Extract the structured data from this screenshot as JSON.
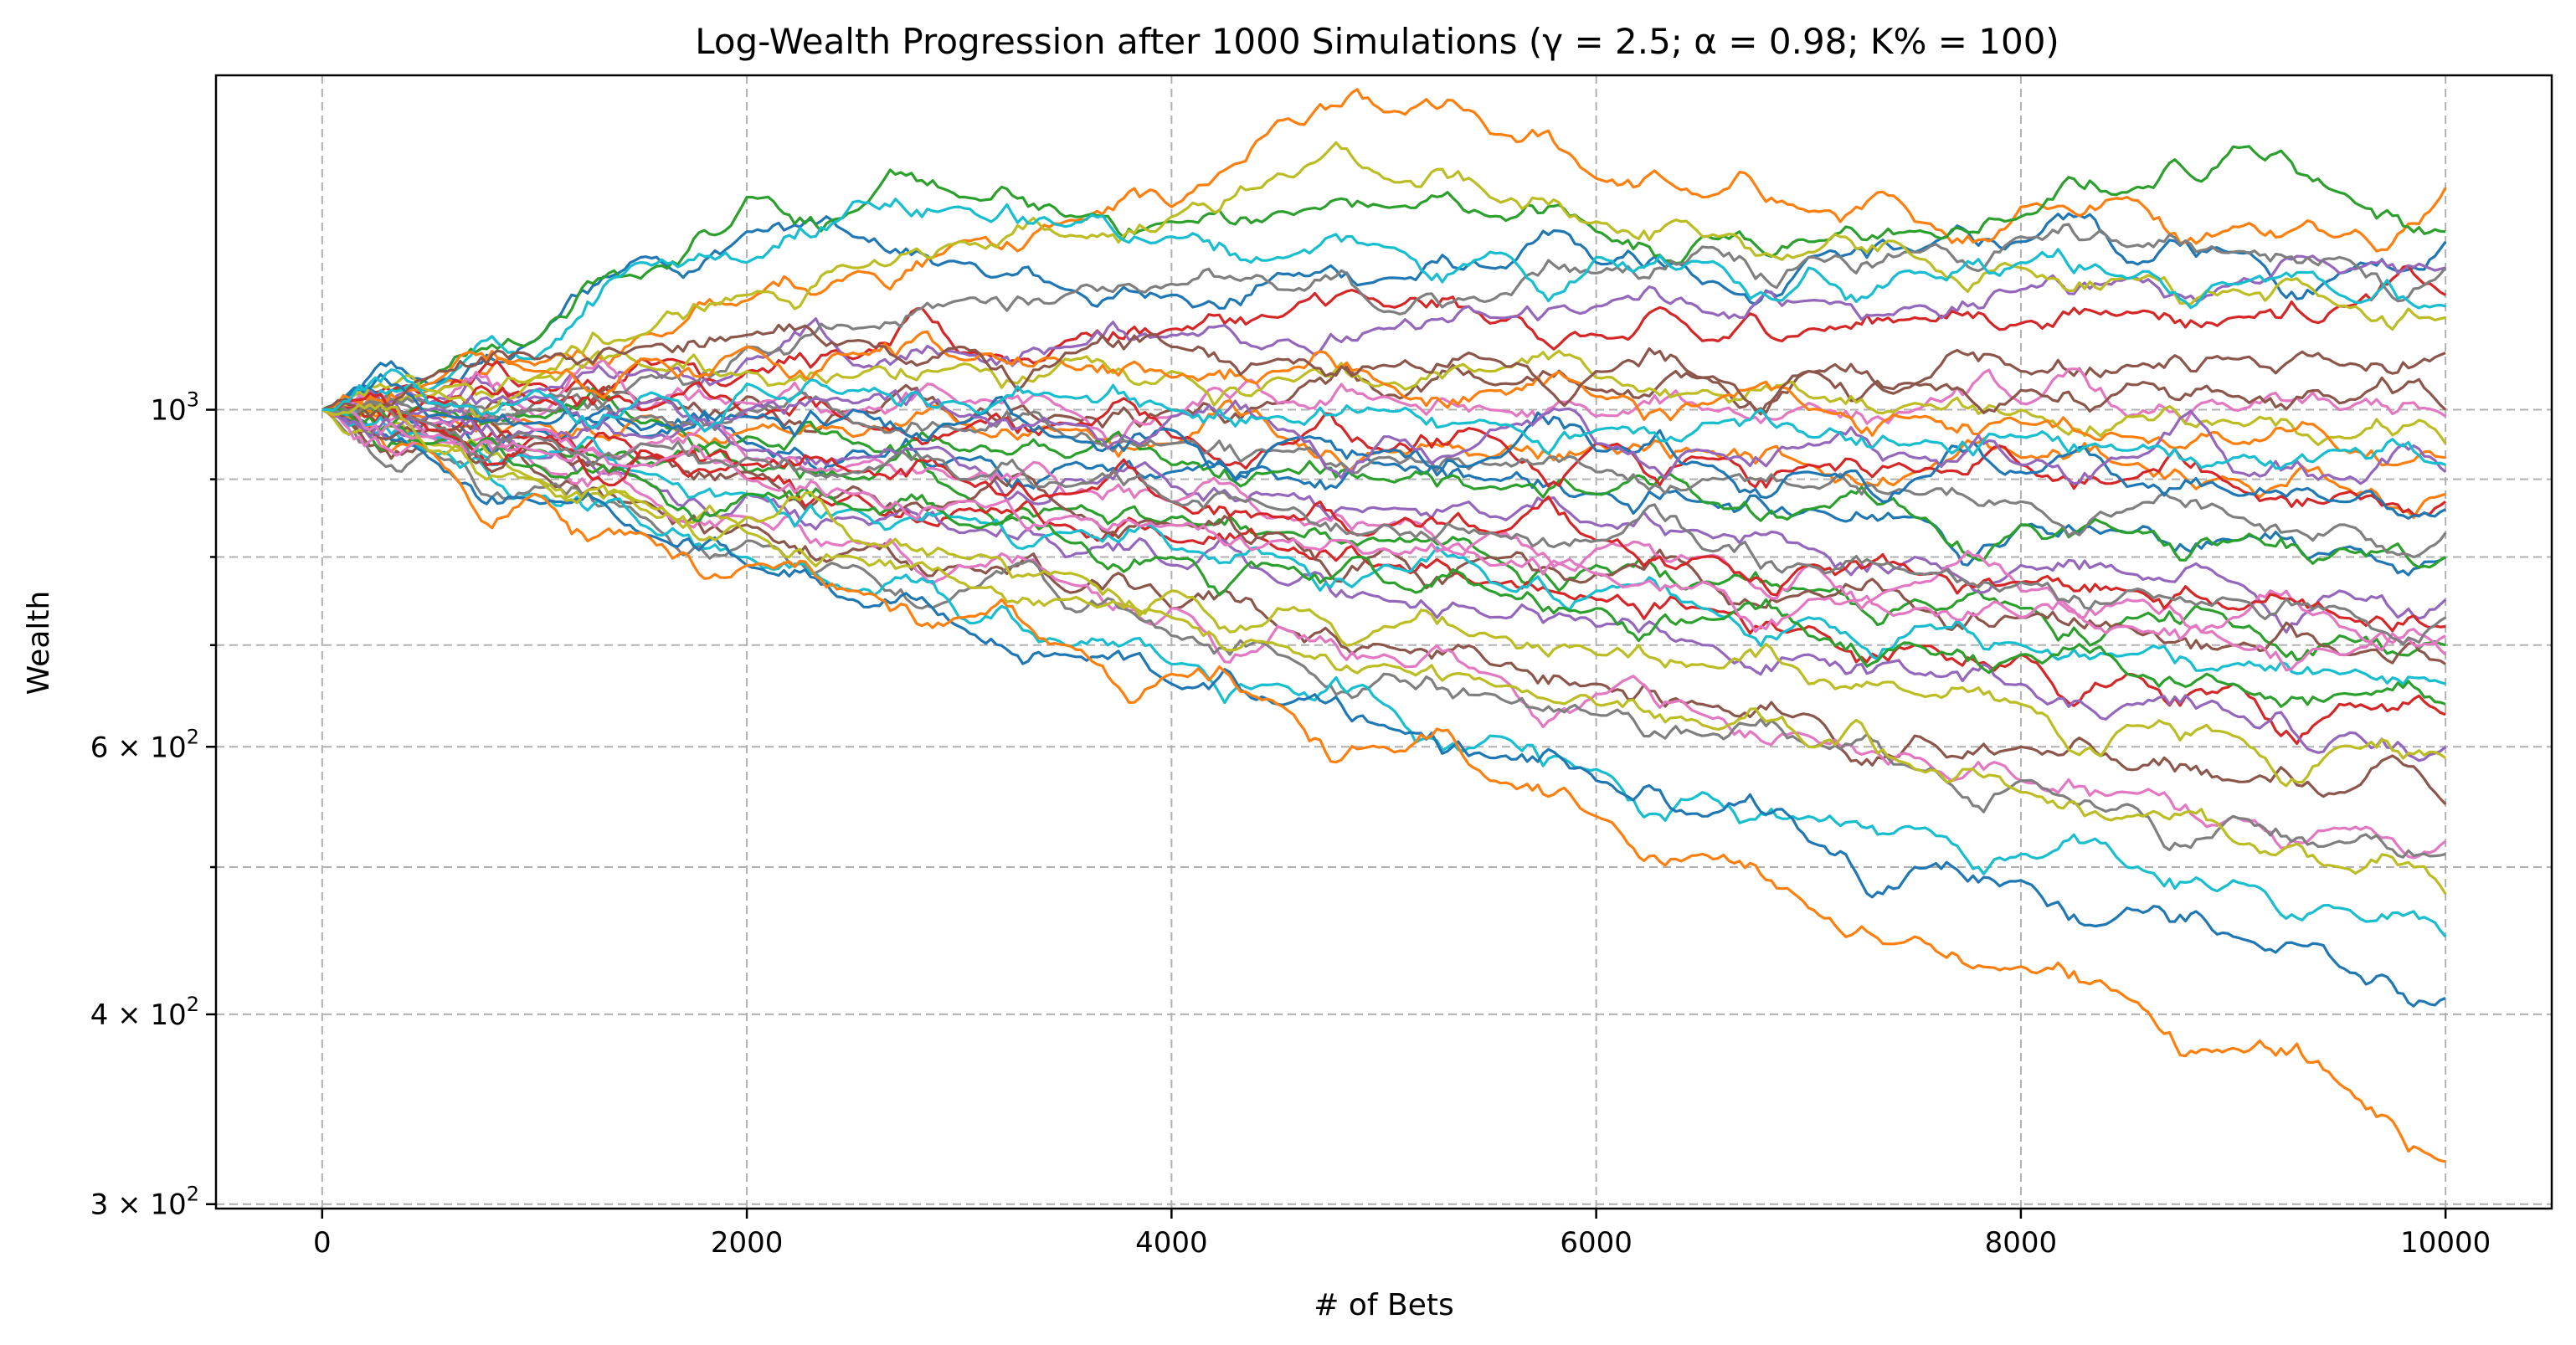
{
  "chart_data": {
    "type": "line",
    "title": "Log-Wealth Progression after 1000 Simulations (γ = 2.5; α = 0.98; K% = 100)",
    "xlabel": "# of Bets",
    "ylabel": "Wealth",
    "xlim": [
      -500,
      10500
    ],
    "ylim": [
      298,
      1660
    ],
    "y_scale": "log",
    "grid": true,
    "legend": "none",
    "x_ticks": [
      {
        "value": 0,
        "label": "0"
      },
      {
        "value": 2000,
        "label": "2000"
      },
      {
        "value": 4000,
        "label": "4000"
      },
      {
        "value": 6000,
        "label": "6000"
      },
      {
        "value": 8000,
        "label": "8000"
      },
      {
        "value": 10000,
        "label": "10000"
      }
    ],
    "y_ticks": [
      {
        "value": 300,
        "base": "3",
        "exp": "2"
      },
      {
        "value": 400,
        "base": "4",
        "exp": "2"
      },
      {
        "value": 600,
        "base": "6",
        "exp": "2"
      },
      {
        "value": 1000,
        "base": "10",
        "exp": "3"
      }
    ],
    "y_minor_grid": [
      500,
      700,
      800,
      900
    ],
    "x": [
      0,
      500,
      1000,
      1500,
      2000,
      2500,
      3000,
      3500,
      4000,
      4500,
      5000,
      5500,
      6000,
      6500,
      7000,
      7500,
      8000,
      8500,
      9000,
      9500,
      10000
    ],
    "colors": [
      "#1f77b4",
      "#ff7f0e",
      "#2ca02c",
      "#d62728",
      "#9467bd",
      "#8c564b",
      "#e377c2",
      "#7f7f7f",
      "#bcbd22",
      "#17becf"
    ],
    "series": [
      {
        "values": [
          1000,
          1040,
          1110,
          1260,
          1310,
          1300,
          1250,
          1200,
          1190,
          1230,
          1220,
          1240,
          1250,
          1210,
          1260,
          1270,
          1290,
          1250,
          1270,
          1230,
          1290
        ]
      },
      {
        "values": [
          1000,
          1030,
          1070,
          1120,
          1180,
          1230,
          1290,
          1330,
          1360,
          1550,
          1570,
          1520,
          1420,
          1380,
          1350,
          1330,
          1360,
          1380,
          1320,
          1300,
          1400
        ]
      },
      {
        "values": [
          1000,
          1050,
          1110,
          1220,
          1380,
          1350,
          1380,
          1340,
          1330,
          1350,
          1360,
          1340,
          1310,
          1300,
          1290,
          1310,
          1340,
          1390,
          1490,
          1390,
          1310
        ]
      },
      {
        "values": [
          1000,
          1020,
          1040,
          1080,
          1060,
          1080,
          1090,
          1110,
          1130,
          1150,
          1170,
          1140,
          1120,
          1110,
          1130,
          1150,
          1140,
          1160,
          1150,
          1170,
          1190
        ]
      },
      {
        "values": [
          1000,
          1010,
          1030,
          1060,
          1080,
          1070,
          1090,
          1100,
          1120,
          1110,
          1130,
          1150,
          1170,
          1160,
          1180,
          1170,
          1200,
          1220,
          1210,
          1230,
          1240
        ]
      },
      {
        "values": [
          1000,
          990,
          1000,
          1010,
          1020,
          1000,
          980,
          990,
          1000,
          1010,
          1020,
          1040,
          1030,
          1050,
          1060,
          1040,
          1060,
          1070,
          1080,
          1070,
          1090
        ]
      },
      {
        "values": [
          1000,
          1010,
          990,
          1000,
          1010,
          1000,
          1010,
          1000,
          990,
          1010,
          1020,
          1000,
          990,
          1000,
          1010,
          1000,
          1010,
          990,
          1000,
          1000,
          990
        ]
      },
      {
        "values": [
          1000,
          1000,
          1010,
          1050,
          1100,
          1130,
          1180,
          1190,
          1210,
          1200,
          1160,
          1180,
          1230,
          1280,
          1260,
          1270,
          1300,
          1280,
          1270,
          1260,
          1240
        ]
      },
      {
        "values": [
          1000,
          1020,
          1050,
          1120,
          1190,
          1240,
          1290,
          1300,
          1340,
          1430,
          1420,
          1380,
          1330,
          1300,
          1270,
          1260,
          1240,
          1220,
          1200,
          1170,
          1150
        ]
      },
      {
        "values": [
          1000,
          1030,
          1080,
          1250,
          1250,
          1370,
          1360,
          1320,
          1300,
          1260,
          1280,
          1270,
          1260,
          1250,
          1240,
          1230,
          1250,
          1220,
          1210,
          1190,
          1170
        ]
      },
      {
        "values": [
          1000,
          980,
          970,
          960,
          950,
          940,
          930,
          920,
          910,
          900,
          920,
          900,
          880,
          870,
          860,
          850,
          840,
          830,
          820,
          810,
          800
        ]
      },
      {
        "values": [
          1000,
          990,
          980,
          990,
          970,
          960,
          980,
          970,
          950,
          960,
          940,
          930,
          950,
          940,
          920,
          910,
          930,
          920,
          900,
          890,
          880
        ]
      },
      {
        "values": [
          1000,
          970,
          940,
          920,
          910,
          900,
          880,
          860,
          850,
          830,
          820,
          800,
          790,
          770,
          760,
          750,
          740,
          730,
          720,
          710,
          700
        ]
      },
      {
        "values": [
          1000,
          980,
          960,
          930,
          900,
          880,
          860,
          840,
          820,
          810,
          790,
          770,
          750,
          740,
          720,
          700,
          690,
          670,
          660,
          640,
          630
        ]
      },
      {
        "values": [
          1000,
          960,
          930,
          900,
          880,
          850,
          830,
          800,
          790,
          770,
          750,
          730,
          720,
          700,
          690,
          670,
          660,
          640,
          630,
          610,
          600
        ]
      },
      {
        "values": [
          1000,
          950,
          910,
          870,
          840,
          810,
          790,
          760,
          740,
          720,
          700,
          680,
          660,
          640,
          630,
          610,
          600,
          580,
          570,
          560,
          550
        ]
      },
      {
        "values": [
          1000,
          960,
          920,
          880,
          850,
          820,
          790,
          770,
          740,
          720,
          690,
          670,
          650,
          630,
          610,
          590,
          570,
          560,
          540,
          530,
          520
        ]
      },
      {
        "values": [
          1000,
          940,
          890,
          850,
          820,
          790,
          760,
          740,
          710,
          690,
          670,
          650,
          630,
          610,
          600,
          580,
          570,
          550,
          540,
          520,
          510
        ]
      },
      {
        "values": [
          1000,
          950,
          900,
          860,
          830,
          800,
          770,
          750,
          730,
          700,
          680,
          660,
          640,
          620,
          600,
          580,
          560,
          540,
          520,
          500,
          480
        ]
      },
      {
        "values": [
          1000,
          940,
          880,
          840,
          800,
          760,
          730,
          700,
          680,
          660,
          640,
          610,
          580,
          560,
          540,
          530,
          510,
          500,
          490,
          470,
          450
        ]
      },
      {
        "values": [
          1000,
          930,
          870,
          830,
          790,
          750,
          720,
          690,
          660,
          640,
          620,
          590,
          570,
          540,
          520,
          500,
          490,
          470,
          450,
          430,
          410
        ]
      },
      {
        "values": [
          1000,
          940,
          880,
          830,
          790,
          760,
          730,
          700,
          670,
          640,
          600,
          570,
          540,
          510,
          470,
          450,
          430,
          410,
          380,
          360,
          320
        ]
      },
      {
        "values": [
          1000,
          1000,
          990,
          980,
          960,
          950,
          940,
          930,
          920,
          910,
          900,
          890,
          880,
          870,
          860,
          850,
          840,
          830,
          820,
          810,
          800
        ]
      },
      {
        "values": [
          1000,
          1020,
          1010,
          1000,
          990,
          980,
          970,
          980,
          960,
          950,
          940,
          960,
          950,
          930,
          920,
          910,
          920,
          900,
          890,
          880,
          870
        ]
      },
      {
        "values": [
          1000,
          990,
          970,
          960,
          940,
          930,
          920,
          900,
          890,
          880,
          860,
          850,
          840,
          830,
          810,
          800,
          790,
          780,
          770,
          760,
          750
        ]
      },
      {
        "values": [
          1000,
          970,
          950,
          930,
          910,
          890,
          870,
          860,
          840,
          830,
          810,
          800,
          780,
          770,
          760,
          740,
          730,
          720,
          700,
          690,
          680
        ]
      },
      {
        "values": [
          1000,
          980,
          970,
          950,
          930,
          920,
          900,
          880,
          870,
          850,
          840,
          830,
          810,
          800,
          790,
          770,
          760,
          750,
          730,
          720,
          710
        ]
      },
      {
        "values": [
          1000,
          1010,
          1000,
          990,
          1000,
          980,
          970,
          960,
          950,
          940,
          930,
          920,
          910,
          900,
          890,
          880,
          870,
          860,
          850,
          840,
          830
        ]
      },
      {
        "values": [
          1000,
          1030,
          1050,
          1070,
          1060,
          1050,
          1070,
          1080,
          1060,
          1050,
          1040,
          1060,
          1050,
          1030,
          1020,
          1010,
          1000,
          990,
          980,
          960,
          950
        ]
      },
      {
        "values": [
          1000,
          960,
          930,
          910,
          880,
          860,
          850,
          830,
          810,
          800,
          790,
          770,
          760,
          740,
          730,
          720,
          700,
          690,
          680,
          670,
          660
        ]
      },
      {
        "values": [
          1000,
          990,
          980,
          970,
          990,
          1000,
          980,
          960,
          970,
          950,
          940,
          930,
          940,
          920,
          910,
          900,
          910,
          890,
          880,
          870,
          860
        ]
      },
      {
        "values": [
          1000,
          1040,
          1060,
          1080,
          1100,
          1090,
          1080,
          1070,
          1050,
          1060,
          1040,
          1030,
          1020,
          1010,
          1000,
          990,
          980,
          960,
          950,
          940,
          930
        ]
      },
      {
        "values": [
          1000,
          950,
          920,
          900,
          880,
          860,
          840,
          820,
          800,
          790,
          770,
          760,
          740,
          730,
          710,
          700,
          690,
          670,
          660,
          650,
          640
        ]
      },
      {
        "values": [
          1000,
          970,
          960,
          940,
          920,
          910,
          900,
          880,
          870,
          850,
          840,
          830,
          820,
          800,
          790,
          780,
          770,
          760,
          740,
          730,
          720
        ]
      },
      {
        "values": [
          1000,
          1000,
          1020,
          1010,
          1000,
          1010,
          990,
          980,
          990,
          970,
          960,
          970,
          950,
          940,
          950,
          930,
          920,
          930,
          910,
          900,
          910
        ]
      },
      {
        "values": [
          1000,
          1050,
          1080,
          1100,
          1120,
          1110,
          1100,
          1090,
          1100,
          1080,
          1070,
          1080,
          1060,
          1050,
          1060,
          1040,
          1030,
          1040,
          1020,
          1010,
          1000
        ]
      },
      {
        "values": [
          1000,
          960,
          940,
          920,
          900,
          880,
          870,
          850,
          840,
          820,
          810,
          790,
          780,
          770,
          750,
          740,
          730,
          720,
          700,
          690,
          690
        ]
      },
      {
        "values": [
          1000,
          980,
          960,
          950,
          930,
          910,
          900,
          890,
          870,
          860,
          840,
          830,
          820,
          810,
          790,
          780,
          770,
          760,
          750,
          740,
          730
        ]
      },
      {
        "values": [
          1000,
          940,
          900,
          870,
          850,
          820,
          800,
          780,
          760,
          740,
          720,
          710,
          690,
          680,
          660,
          650,
          640,
          620,
          610,
          600,
          590
        ]
      },
      {
        "values": [
          1000,
          1010,
          1030,
          1020,
          1040,
          1030,
          1010,
          1020,
          1000,
          990,
          1000,
          980,
          970,
          980,
          960,
          950,
          960,
          940,
          930,
          940,
          920
        ]
      }
    ]
  }
}
